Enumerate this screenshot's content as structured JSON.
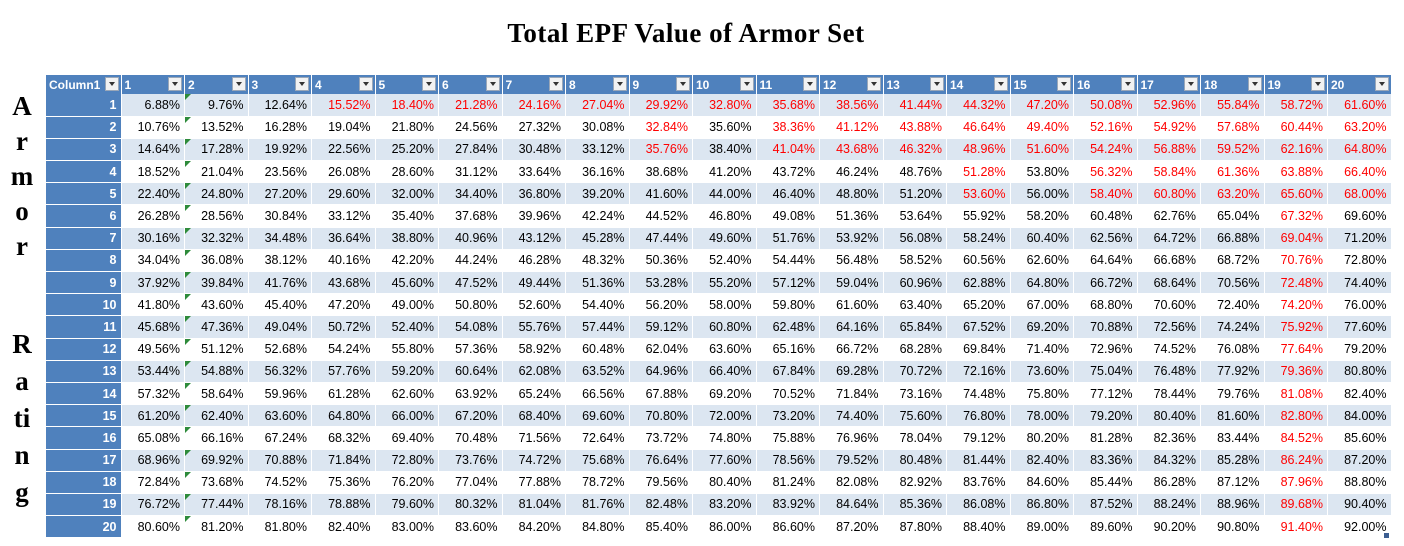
{
  "title": "Total EPF Value of Armor Set",
  "side_label_top": [
    "A",
    "r",
    "m",
    "o",
    "r"
  ],
  "side_label_bottom": [
    "R",
    "a",
    "ti",
    "n",
    "g"
  ],
  "table": {
    "first_column_header": "Column1",
    "column_headers": [
      "1",
      "2",
      "3",
      "4",
      "5",
      "6",
      "7",
      "8",
      "9",
      "10",
      "11",
      "12",
      "13",
      "14",
      "15",
      "16",
      "17",
      "18",
      "19",
      "20"
    ],
    "highlight_color": "#ff0000",
    "header_color": "#4f81bd",
    "band_color": "#dce6f1",
    "rows": [
      {
        "label": "1",
        "cells": [
          "6.88%",
          "9.76%",
          "12.64%",
          "15.52%",
          "18.40%",
          "21.28%",
          "24.16%",
          "27.04%",
          "29.92%",
          "32.80%",
          "35.68%",
          "38.56%",
          "41.44%",
          "44.32%",
          "47.20%",
          "50.08%",
          "52.96%",
          "55.84%",
          "58.72%",
          "61.60%"
        ],
        "red_from": 3
      },
      {
        "label": "2",
        "cells": [
          "10.76%",
          "13.52%",
          "16.28%",
          "19.04%",
          "21.80%",
          "24.56%",
          "27.32%",
          "30.08%",
          "32.84%",
          "35.60%",
          "38.36%",
          "41.12%",
          "43.88%",
          "46.64%",
          "49.40%",
          "52.16%",
          "54.92%",
          "57.68%",
          "60.44%",
          "63.20%"
        ],
        "red_from": 8,
        "red_skip": [
          9
        ]
      },
      {
        "label": "3",
        "cells": [
          "14.64%",
          "17.28%",
          "19.92%",
          "22.56%",
          "25.20%",
          "27.84%",
          "30.48%",
          "33.12%",
          "35.76%",
          "38.40%",
          "41.04%",
          "43.68%",
          "46.32%",
          "48.96%",
          "51.60%",
          "54.24%",
          "56.88%",
          "59.52%",
          "62.16%",
          "64.80%"
        ],
        "red_from": 8,
        "red_skip": [
          9
        ]
      },
      {
        "label": "4",
        "cells": [
          "18.52%",
          "21.04%",
          "23.56%",
          "26.08%",
          "28.60%",
          "31.12%",
          "33.64%",
          "36.16%",
          "38.68%",
          "41.20%",
          "43.72%",
          "46.24%",
          "48.76%",
          "51.28%",
          "53.80%",
          "56.32%",
          "58.84%",
          "61.36%",
          "63.88%",
          "66.40%"
        ],
        "red_from": 13,
        "red_skip": [
          14
        ]
      },
      {
        "label": "5",
        "cells": [
          "22.40%",
          "24.80%",
          "27.20%",
          "29.60%",
          "32.00%",
          "34.40%",
          "36.80%",
          "39.20%",
          "41.60%",
          "44.00%",
          "46.40%",
          "48.80%",
          "51.20%",
          "53.60%",
          "56.00%",
          "58.40%",
          "60.80%",
          "63.20%",
          "65.60%",
          "68.00%"
        ],
        "red_from": 13,
        "red_skip": [
          14
        ]
      },
      {
        "label": "6",
        "cells": [
          "26.28%",
          "28.56%",
          "30.84%",
          "33.12%",
          "35.40%",
          "37.68%",
          "39.96%",
          "42.24%",
          "44.52%",
          "46.80%",
          "49.08%",
          "51.36%",
          "53.64%",
          "55.92%",
          "58.20%",
          "60.48%",
          "62.76%",
          "65.04%",
          "67.32%",
          "69.60%"
        ],
        "red_from": 18,
        "red_to": 18
      },
      {
        "label": "7",
        "cells": [
          "30.16%",
          "32.32%",
          "34.48%",
          "36.64%",
          "38.80%",
          "40.96%",
          "43.12%",
          "45.28%",
          "47.44%",
          "49.60%",
          "51.76%",
          "53.92%",
          "56.08%",
          "58.24%",
          "60.40%",
          "62.56%",
          "64.72%",
          "66.88%",
          "69.04%",
          "71.20%"
        ],
        "red_from": 18,
        "red_to": 18
      },
      {
        "label": "8",
        "cells": [
          "34.04%",
          "36.08%",
          "38.12%",
          "40.16%",
          "42.20%",
          "44.24%",
          "46.28%",
          "48.32%",
          "50.36%",
          "52.40%",
          "54.44%",
          "56.48%",
          "58.52%",
          "60.56%",
          "62.60%",
          "64.64%",
          "66.68%",
          "68.72%",
          "70.76%",
          "72.80%"
        ],
        "red_from": 18,
        "red_to": 18
      },
      {
        "label": "9",
        "cells": [
          "37.92%",
          "39.84%",
          "41.76%",
          "43.68%",
          "45.60%",
          "47.52%",
          "49.44%",
          "51.36%",
          "53.28%",
          "55.20%",
          "57.12%",
          "59.04%",
          "60.96%",
          "62.88%",
          "64.80%",
          "66.72%",
          "68.64%",
          "70.56%",
          "72.48%",
          "74.40%"
        ],
        "red_from": 18,
        "red_to": 18
      },
      {
        "label": "10",
        "cells": [
          "41.80%",
          "43.60%",
          "45.40%",
          "47.20%",
          "49.00%",
          "50.80%",
          "52.60%",
          "54.40%",
          "56.20%",
          "58.00%",
          "59.80%",
          "61.60%",
          "63.40%",
          "65.20%",
          "67.00%",
          "68.80%",
          "70.60%",
          "72.40%",
          "74.20%",
          "76.00%"
        ],
        "red_from": 18,
        "red_to": 18
      },
      {
        "label": "11",
        "cells": [
          "45.68%",
          "47.36%",
          "49.04%",
          "50.72%",
          "52.40%",
          "54.08%",
          "55.76%",
          "57.44%",
          "59.12%",
          "60.80%",
          "62.48%",
          "64.16%",
          "65.84%",
          "67.52%",
          "69.20%",
          "70.88%",
          "72.56%",
          "74.24%",
          "75.92%",
          "77.60%"
        ],
        "red_from": 18,
        "red_to": 18
      },
      {
        "label": "12",
        "cells": [
          "49.56%",
          "51.12%",
          "52.68%",
          "54.24%",
          "55.80%",
          "57.36%",
          "58.92%",
          "60.48%",
          "62.04%",
          "63.60%",
          "65.16%",
          "66.72%",
          "68.28%",
          "69.84%",
          "71.40%",
          "72.96%",
          "74.52%",
          "76.08%",
          "77.64%",
          "79.20%"
        ],
        "red_from": 18,
        "red_to": 18
      },
      {
        "label": "13",
        "cells": [
          "53.44%",
          "54.88%",
          "56.32%",
          "57.76%",
          "59.20%",
          "60.64%",
          "62.08%",
          "63.52%",
          "64.96%",
          "66.40%",
          "67.84%",
          "69.28%",
          "70.72%",
          "72.16%",
          "73.60%",
          "75.04%",
          "76.48%",
          "77.92%",
          "79.36%",
          "80.80%"
        ],
        "red_from": 18,
        "red_to": 18
      },
      {
        "label": "14",
        "cells": [
          "57.32%",
          "58.64%",
          "59.96%",
          "61.28%",
          "62.60%",
          "63.92%",
          "65.24%",
          "66.56%",
          "67.88%",
          "69.20%",
          "70.52%",
          "71.84%",
          "73.16%",
          "74.48%",
          "75.80%",
          "77.12%",
          "78.44%",
          "79.76%",
          "81.08%",
          "82.40%"
        ],
        "red_from": 18,
        "red_to": 18
      },
      {
        "label": "15",
        "cells": [
          "61.20%",
          "62.40%",
          "63.60%",
          "64.80%",
          "66.00%",
          "67.20%",
          "68.40%",
          "69.60%",
          "70.80%",
          "72.00%",
          "73.20%",
          "74.40%",
          "75.60%",
          "76.80%",
          "78.00%",
          "79.20%",
          "80.40%",
          "81.60%",
          "82.80%",
          "84.00%"
        ],
        "red_from": 18,
        "red_to": 18
      },
      {
        "label": "16",
        "cells": [
          "65.08%",
          "66.16%",
          "67.24%",
          "68.32%",
          "69.40%",
          "70.48%",
          "71.56%",
          "72.64%",
          "73.72%",
          "74.80%",
          "75.88%",
          "76.96%",
          "78.04%",
          "79.12%",
          "80.20%",
          "81.28%",
          "82.36%",
          "83.44%",
          "84.52%",
          "85.60%"
        ],
        "red_from": 18,
        "red_to": 18
      },
      {
        "label": "17",
        "cells": [
          "68.96%",
          "69.92%",
          "70.88%",
          "71.84%",
          "72.80%",
          "73.76%",
          "74.72%",
          "75.68%",
          "76.64%",
          "77.60%",
          "78.56%",
          "79.52%",
          "80.48%",
          "81.44%",
          "82.40%",
          "83.36%",
          "84.32%",
          "85.28%",
          "86.24%",
          "87.20%"
        ],
        "red_from": 18,
        "red_to": 18
      },
      {
        "label": "18",
        "cells": [
          "72.84%",
          "73.68%",
          "74.52%",
          "75.36%",
          "76.20%",
          "77.04%",
          "77.88%",
          "78.72%",
          "79.56%",
          "80.40%",
          "81.24%",
          "82.08%",
          "82.92%",
          "83.76%",
          "84.60%",
          "85.44%",
          "86.28%",
          "87.12%",
          "87.96%",
          "88.80%"
        ],
        "red_from": 18,
        "red_to": 18
      },
      {
        "label": "19",
        "cells": [
          "76.72%",
          "77.44%",
          "78.16%",
          "78.88%",
          "79.60%",
          "80.32%",
          "81.04%",
          "81.76%",
          "82.48%",
          "83.20%",
          "83.92%",
          "84.64%",
          "85.36%",
          "86.08%",
          "86.80%",
          "87.52%",
          "88.24%",
          "88.96%",
          "89.68%",
          "90.40%"
        ],
        "red_from": 18,
        "red_to": 18
      },
      {
        "label": "20",
        "cells": [
          "80.60%",
          "81.20%",
          "81.80%",
          "82.40%",
          "83.00%",
          "83.60%",
          "84.20%",
          "84.80%",
          "85.40%",
          "86.00%",
          "86.60%",
          "87.20%",
          "87.80%",
          "88.40%",
          "89.00%",
          "89.60%",
          "90.20%",
          "90.80%",
          "91.40%",
          "92.00%"
        ],
        "red_from": 18,
        "red_to": 18
      }
    ]
  }
}
